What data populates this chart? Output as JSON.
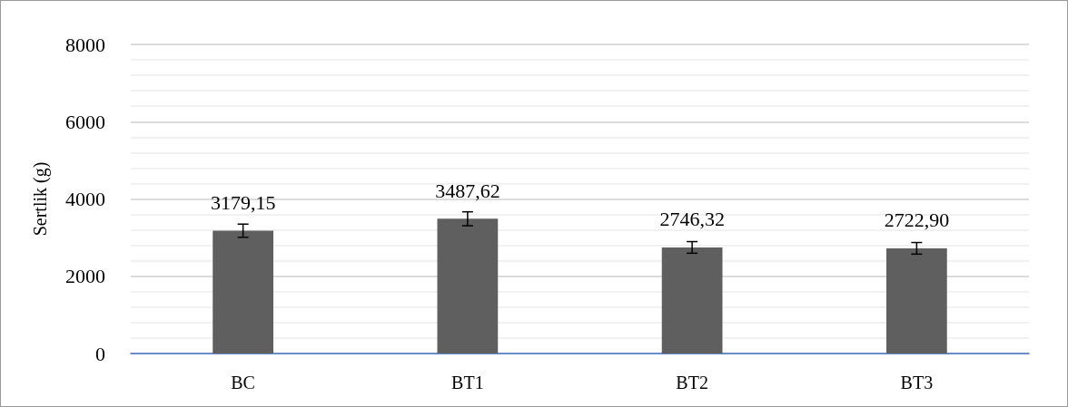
{
  "chart_data": {
    "type": "bar",
    "ylabel": "Sertlik (g)",
    "categories": [
      "BC",
      "BT1",
      "BT2",
      "BT3"
    ],
    "values": [
      3179.15,
      3487.62,
      2746.32,
      2722.9
    ],
    "color": "#5f5f5f",
    "errors": [
      170,
      180,
      150,
      150
    ],
    "value_labels": [
      "3179,15",
      "3487,62",
      "2746,32",
      "2722,90"
    ],
    "ylim": [
      0,
      8000
    ],
    "yticks": [
      0,
      2000,
      4000,
      6000,
      8000
    ],
    "grid": "y"
  }
}
